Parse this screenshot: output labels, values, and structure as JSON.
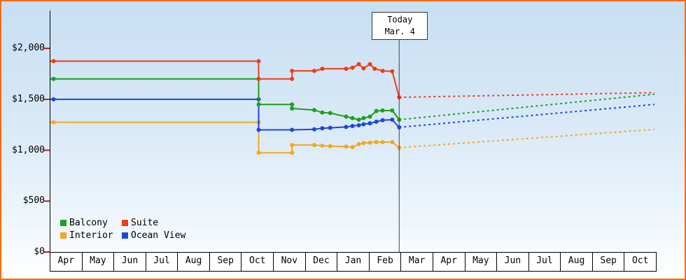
{
  "chart_data": {
    "type": "line",
    "y_axis": {
      "tick_labels": [
        "$2,000",
        "$1,500",
        "$1,000",
        "$500",
        "$0"
      ],
      "tick_values": [
        2000,
        1500,
        1000,
        500,
        0
      ],
      "min": 0,
      "max": 2370
    },
    "x_axis": {
      "month_labels": [
        "Apr",
        "May",
        "Jun",
        "Jul",
        "Aug",
        "Sep",
        "Oct",
        "Nov",
        "Dec",
        "Jan",
        "Feb",
        "Mar",
        "Apr",
        "May",
        "Jun",
        "Jul",
        "Aug",
        "Sep",
        "Oct"
      ],
      "range_months": [
        0,
        19
      ]
    },
    "today_marker": {
      "line1": "Today",
      "line2": "Mar. 4",
      "x_month": 10.97
    },
    "legend": [
      {
        "label": "Balcony",
        "color": "#1aa11a"
      },
      {
        "label": "Suite",
        "color": "#f23a13"
      },
      {
        "label": "Interior",
        "color": "#f5a71f"
      },
      {
        "label": "Ocean View",
        "color": "#1b46e0"
      }
    ],
    "series": [
      {
        "name": "Interior",
        "color": "#f5a71f",
        "solid_points": [
          [
            0,
            1275
          ],
          [
            0.1,
            1275
          ],
          [
            6.55,
            1275
          ],
          [
            6.55,
            975
          ],
          [
            7.6,
            975
          ],
          [
            7.6,
            1050
          ],
          [
            8.3,
            1050
          ],
          [
            8.55,
            1045
          ],
          [
            8.8,
            1040
          ],
          [
            9.3,
            1035
          ],
          [
            9.5,
            1030
          ],
          [
            9.7,
            1060
          ],
          [
            9.85,
            1070
          ],
          [
            10.05,
            1075
          ],
          [
            10.25,
            1080
          ],
          [
            10.45,
            1080
          ],
          [
            10.75,
            1080
          ],
          [
            10.97,
            1025
          ]
        ],
        "dotted_points": [
          [
            10.97,
            1025
          ],
          [
            19,
            1205
          ]
        ]
      },
      {
        "name": "Ocean View",
        "color": "#1b46e0",
        "solid_points": [
          [
            0,
            1500
          ],
          [
            0.1,
            1500
          ],
          [
            6.55,
            1500
          ],
          [
            6.55,
            1200
          ],
          [
            7.6,
            1200
          ],
          [
            8.3,
            1205
          ],
          [
            8.55,
            1215
          ],
          [
            8.8,
            1220
          ],
          [
            9.3,
            1228
          ],
          [
            9.5,
            1238
          ],
          [
            9.7,
            1245
          ],
          [
            9.85,
            1255
          ],
          [
            10.05,
            1265
          ],
          [
            10.25,
            1280
          ],
          [
            10.45,
            1295
          ],
          [
            10.75,
            1300
          ],
          [
            10.97,
            1225
          ]
        ],
        "dotted_points": [
          [
            10.97,
            1225
          ],
          [
            19,
            1450
          ]
        ]
      },
      {
        "name": "Balcony",
        "color": "#1aa11a",
        "solid_points": [
          [
            0,
            1700
          ],
          [
            0.1,
            1700
          ],
          [
            6.55,
            1700
          ],
          [
            6.55,
            1450
          ],
          [
            7.6,
            1450
          ],
          [
            7.6,
            1410
          ],
          [
            8.3,
            1395
          ],
          [
            8.55,
            1370
          ],
          [
            8.8,
            1365
          ],
          [
            9.3,
            1330
          ],
          [
            9.5,
            1315
          ],
          [
            9.7,
            1300
          ],
          [
            9.85,
            1315
          ],
          [
            10.05,
            1330
          ],
          [
            10.25,
            1385
          ],
          [
            10.45,
            1390
          ],
          [
            10.75,
            1390
          ],
          [
            10.97,
            1300
          ]
        ],
        "dotted_points": [
          [
            10.97,
            1300
          ],
          [
            19,
            1550
          ]
        ]
      },
      {
        "name": "Suite",
        "color": "#f23a13",
        "solid_points": [
          [
            0,
            1875
          ],
          [
            0.1,
            1875
          ],
          [
            6.55,
            1875
          ],
          [
            6.55,
            1700
          ],
          [
            7.6,
            1700
          ],
          [
            7.6,
            1780
          ],
          [
            8.3,
            1780
          ],
          [
            8.55,
            1800
          ],
          [
            9.3,
            1800
          ],
          [
            9.5,
            1810
          ],
          [
            9.7,
            1845
          ],
          [
            9.85,
            1805
          ],
          [
            10.05,
            1845
          ],
          [
            10.2,
            1800
          ],
          [
            10.45,
            1780
          ],
          [
            10.75,
            1775
          ],
          [
            10.97,
            1520
          ]
        ],
        "dotted_points": [
          [
            10.97,
            1520
          ],
          [
            19,
            1565
          ]
        ]
      }
    ]
  }
}
